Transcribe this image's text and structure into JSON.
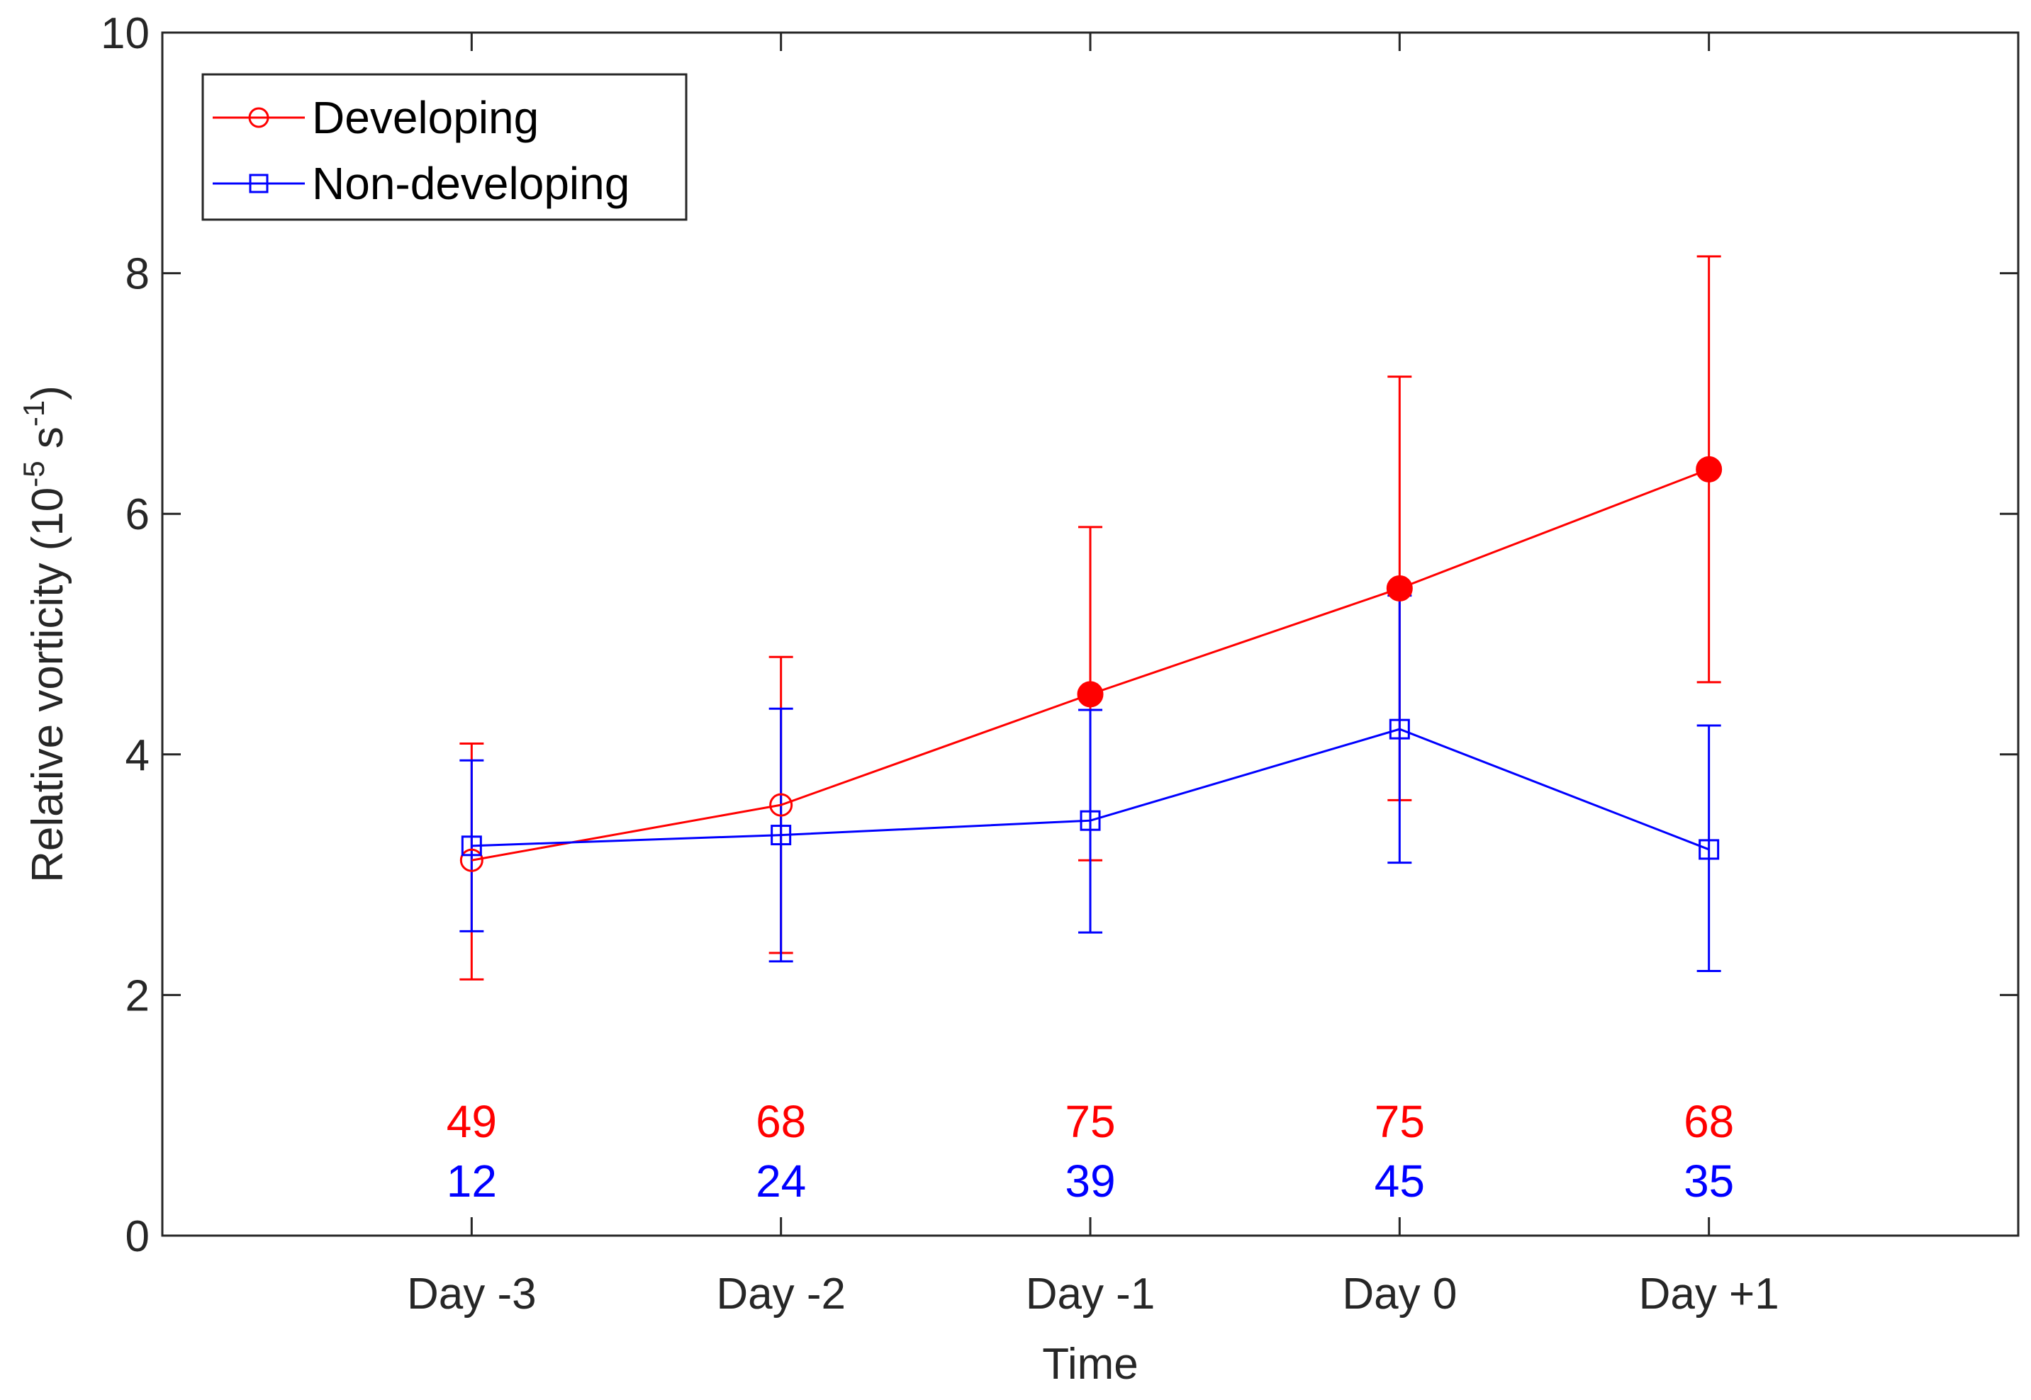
{
  "chart_data": {
    "type": "line",
    "title": "",
    "xlabel": "Time",
    "ylabel_main": "Relative vorticity (10",
    "ylabel_exp1": "-5",
    "ylabel_mid": " s",
    "ylabel_exp2": "-1",
    "ylabel_end": ")",
    "categories": [
      "Day -3",
      "Day -2",
      "Day -1",
      "Day 0",
      "Day +1"
    ],
    "xlim": [
      -1,
      5
    ],
    "ylim": [
      0,
      10
    ],
    "yticks": [
      "0",
      "2",
      "4",
      "6",
      "8",
      "10"
    ],
    "grid": false,
    "legend_position": "top-left",
    "series": [
      {
        "name": "Developing",
        "color": "#ff0000",
        "marker": "circle",
        "values": [
          3.12,
          3.58,
          4.5,
          5.38,
          6.37
        ],
        "err_low": [
          2.13,
          2.35,
          3.12,
          3.62,
          4.6
        ],
        "err_high": [
          4.09,
          4.81,
          5.89,
          7.14,
          8.14
        ],
        "filled": [
          false,
          false,
          true,
          true,
          true
        ],
        "counts": [
          "49",
          "68",
          "75",
          "75",
          "68"
        ]
      },
      {
        "name": "Non-developing",
        "color": "#0000ff",
        "marker": "square",
        "values": [
          3.24,
          3.33,
          3.45,
          4.21,
          3.21
        ],
        "err_low": [
          2.53,
          2.28,
          2.52,
          3.1,
          2.2
        ],
        "err_high": [
          3.95,
          4.38,
          4.37,
          5.32,
          4.24
        ],
        "filled": [
          false,
          false,
          false,
          false,
          false
        ],
        "counts": [
          "12",
          "24",
          "39",
          "45",
          "35"
        ]
      }
    ]
  }
}
